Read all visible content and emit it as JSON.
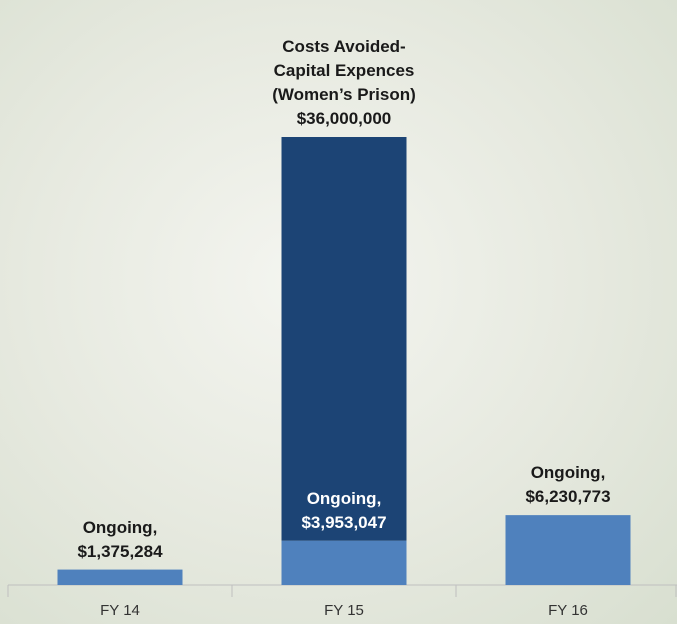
{
  "chart_data": {
    "type": "stacked_bar",
    "categories": [
      "FY 14",
      "FY 15",
      "FY 16"
    ],
    "series": [
      {
        "name": "Ongoing,",
        "color": "#4f81bd",
        "values": [
          1375284,
          3953047,
          6230773
        ],
        "value_labels": [
          "$1,375,284",
          "$3,953,047",
          "$6,230,773"
        ]
      },
      {
        "name": "Costs Avoided-\nCapital Expences\n(Women’s Prison)",
        "color": "#1c4475",
        "values": [
          null,
          36000000,
          null
        ],
        "value_labels": [
          null,
          "$36,000,000",
          null
        ]
      }
    ]
  }
}
